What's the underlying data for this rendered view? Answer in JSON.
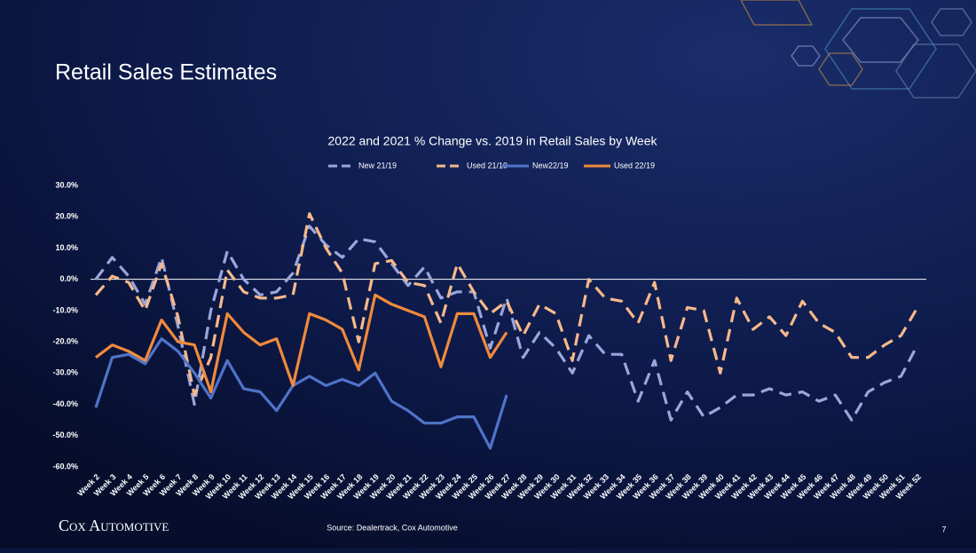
{
  "slide": {
    "title": "Retail Sales Estimates",
    "source": "Source: Dealertrack, Cox Automotive",
    "logo": "Cox Automotive",
    "page": "7"
  },
  "chart_data": {
    "type": "line",
    "title": "2022 and 2021 % Change vs. 2019 in Retail Sales by Week",
    "categories": [
      "Week 2",
      "Week 3",
      "Week 4",
      "Week 5",
      "Week 6",
      "Week 7",
      "Week 8",
      "Week 9",
      "Week 10",
      "Week 11",
      "Week 12",
      "Week 13",
      "Week 14",
      "Week 15",
      "Week 16",
      "Week 17",
      "Week 18",
      "Week 19",
      "Week 20",
      "Week 21",
      "Week 22",
      "Week 23",
      "Week 24",
      "Week 25",
      "Week 26",
      "Week 27",
      "Week 28",
      "Week 29",
      "Week 30",
      "Week 31",
      "Week 32",
      "Week 33",
      "Week 34",
      "Week 35",
      "Week 36",
      "Week 37",
      "Week 38",
      "Week 39",
      "Week 40",
      "Week 41",
      "Week 42",
      "Week 43",
      "Week 44",
      "Week 45",
      "Week 46",
      "Week 47",
      "Week 48",
      "Week 49",
      "Week 50",
      "Week 51",
      "Week 52"
    ],
    "series": [
      {
        "name": "New 21/19",
        "color": "#9aa6dc",
        "dash": true,
        "values": [
          0,
          7,
          1,
          -8,
          7,
          -15,
          -40,
          -10,
          9,
          0,
          -5,
          -4,
          2,
          17,
          11,
          7,
          13,
          12,
          5,
          -2,
          4,
          -6,
          -4,
          -4,
          -22,
          -6,
          -25,
          -17,
          -22,
          -30,
          -18,
          -24,
          -24,
          -39,
          -26,
          -45,
          -36,
          -44,
          -41,
          -37,
          -37,
          -35,
          -37,
          -36,
          -39,
          -37,
          -45,
          -36,
          -33,
          -31,
          -21
        ]
      },
      {
        "name": "Used 21/19",
        "color": "#f6b98a",
        "dash": true,
        "values": [
          -5,
          1,
          -1,
          -10,
          5,
          -12,
          -37,
          -25,
          3,
          -4,
          -6,
          -6,
          -5,
          21,
          10,
          2,
          -20,
          5,
          6,
          -1,
          -2,
          -14,
          5,
          -4,
          -11,
          -7,
          -18,
          -8,
          -11,
          -26,
          0,
          -6,
          -7,
          -14,
          -1,
          -26,
          -9,
          -10,
          -30,
          -6,
          -16,
          -12,
          -18,
          -7,
          -14,
          -17,
          -25,
          -25,
          -21,
          -18,
          -9
        ]
      },
      {
        "name": "New22/19",
        "color": "#4f73c9",
        "dash": false,
        "values": [
          -41,
          -25,
          -24,
          -27,
          -19,
          -23,
          -30,
          -38,
          -26,
          -35,
          -36,
          -42,
          -34,
          -31,
          -34,
          -32,
          -34,
          -30,
          -39,
          -42,
          -46,
          -46,
          -44,
          -44,
          -54,
          -37,
          null,
          null,
          null,
          null,
          null,
          null,
          null,
          null,
          null,
          null,
          null,
          null,
          null,
          null,
          null,
          null,
          null,
          null,
          null,
          null,
          null,
          null,
          null,
          null,
          null
        ]
      },
      {
        "name": "Used 22/19",
        "color": "#f08a3c",
        "dash": false,
        "values": [
          -25,
          -21,
          -23,
          -26,
          -13,
          -20,
          -21,
          -36,
          -11,
          -17,
          -21,
          -19,
          -34,
          -11,
          -13,
          -16,
          -29,
          -5,
          -8,
          -10,
          -12,
          -28,
          -11,
          -11,
          -25,
          -17,
          null,
          null,
          null,
          null,
          null,
          null,
          null,
          null,
          null,
          null,
          null,
          null,
          null,
          null,
          null,
          null,
          null,
          null,
          null,
          null,
          null,
          null,
          null,
          null,
          null
        ]
      }
    ],
    "ylim": [
      -60,
      30
    ],
    "yticks": [
      {
        "value": 30,
        "label": "30.0%"
      },
      {
        "value": 20,
        "label": "20.0%"
      },
      {
        "value": 10,
        "label": "10.0%"
      },
      {
        "value": 0,
        "label": "0.0%"
      },
      {
        "value": -10,
        "label": "-10.0%"
      },
      {
        "value": -20,
        "label": "-20.0%"
      },
      {
        "value": -30,
        "label": "-30.0%"
      },
      {
        "value": -40,
        "label": "-40.0%"
      },
      {
        "value": -50,
        "label": "-50.0%"
      },
      {
        "value": -60,
        "label": "-60.0%"
      }
    ],
    "grid": false,
    "legend": "top"
  }
}
